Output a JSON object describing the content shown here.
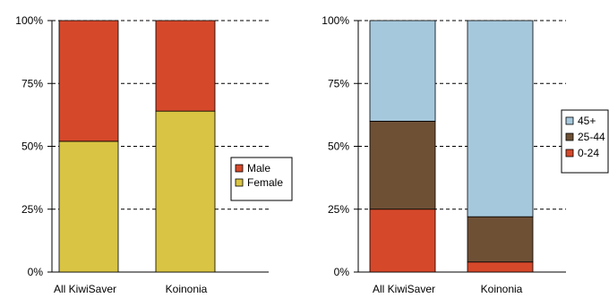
{
  "chart_data": [
    {
      "type": "bar",
      "stacked": true,
      "title": "",
      "xlabel": "",
      "ylabel": "",
      "ylim": [
        0,
        100
      ],
      "y_ticks": [
        "0%",
        "25%",
        "50%",
        "75%",
        "100%"
      ],
      "categories": [
        "All KiwiSaver",
        "Koinonia"
      ],
      "series": [
        {
          "name": "Female",
          "values": [
            52,
            64
          ],
          "color": "#d9c443"
        },
        {
          "name": "Male",
          "values": [
            48,
            36
          ],
          "color": "#d6482a"
        }
      ],
      "legend_order": [
        "Male",
        "Female"
      ],
      "legend": "right",
      "grid": "dashed horizontal"
    },
    {
      "type": "bar",
      "stacked": true,
      "title": "",
      "xlabel": "",
      "ylabel": "",
      "ylim": [
        0,
        100
      ],
      "y_ticks": [
        "0%",
        "25%",
        "50%",
        "75%",
        "100%"
      ],
      "categories": [
        "All KiwiSaver",
        "Koinonia"
      ],
      "series": [
        {
          "name": "0-24",
          "values": [
            25,
            4
          ],
          "color": "#d6482a"
        },
        {
          "name": "25-44",
          "values": [
            35,
            18
          ],
          "color": "#6e5035"
        },
        {
          "name": "45+",
          "values": [
            40,
            78
          ],
          "color": "#a6c8dc"
        }
      ],
      "legend_order": [
        "45+",
        "25-44",
        "0-24"
      ],
      "legend": "right",
      "grid": "dashed horizontal"
    }
  ]
}
